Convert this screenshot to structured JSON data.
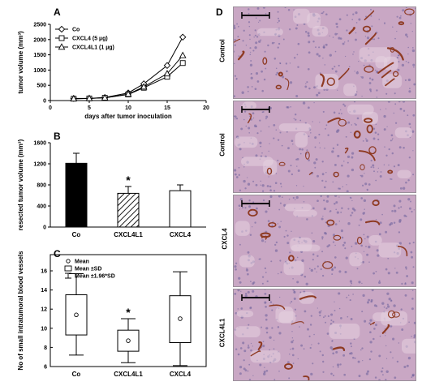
{
  "panels": {
    "A": "A",
    "B": "B",
    "C": "C",
    "D": "D"
  },
  "colors": {
    "ink": "#000000",
    "tissue_bg": "#c9a7c4",
    "tissue_dots": "#6a5f9a",
    "vessel": "#8e3a22"
  },
  "chart_data": [
    {
      "id": "A",
      "type": "line",
      "title": "",
      "xlabel": "days after tumor inoculation",
      "ylabel": "tumor volume (mm³)",
      "xlim": [
        0,
        20
      ],
      "ylim": [
        0,
        2500
      ],
      "xticks": [
        0,
        5,
        10,
        15,
        20
      ],
      "yticks": [
        0,
        500,
        1000,
        1500,
        2000,
        2500
      ],
      "x": [
        3,
        5,
        7,
        10,
        12,
        15,
        17
      ],
      "series": [
        {
          "name": "Co",
          "marker": "diamond",
          "values": [
            70,
            70,
            100,
            250,
            550,
            1150,
            2080
          ]
        },
        {
          "name": "CXCL4 (5 µg)",
          "marker": "square",
          "values": [
            60,
            70,
            90,
            200,
            420,
            780,
            1230
          ]
        },
        {
          "name": "CXCL4L1 (1 µg)",
          "marker": "triangle",
          "values": [
            60,
            70,
            90,
            210,
            450,
            880,
            1480
          ]
        }
      ],
      "legend": "top-left",
      "grid": false
    },
    {
      "id": "B",
      "type": "bar",
      "title": "",
      "xlabel": "",
      "ylabel": "resected tumor volume (mm³)",
      "ylim": [
        0,
        1600
      ],
      "yticks": [
        0,
        400,
        800,
        1200,
        1600
      ],
      "categories": [
        "Co",
        "CXCL4L1",
        "CXCL4"
      ],
      "values": [
        1210,
        640,
        690
      ],
      "errors": [
        190,
        130,
        110
      ],
      "fills": [
        "solid",
        "hatched",
        "open"
      ],
      "annotations": [
        {
          "category": "CXCL4L1",
          "text": "*"
        }
      ]
    },
    {
      "id": "C",
      "type": "box",
      "title": "",
      "xlabel": "",
      "ylabel": "No of small intratumoral blood vessels",
      "ylim": [
        6,
        16
      ],
      "yticks": [
        6,
        8,
        10,
        12,
        14,
        16
      ],
      "categories": [
        "Co",
        "CXCL4L1",
        "CXCL4"
      ],
      "mean": [
        11.4,
        8.7,
        11.0
      ],
      "sd_low": [
        9.3,
        7.6,
        8.5
      ],
      "sd_high": [
        13.5,
        9.8,
        13.4
      ],
      "whisker_low": [
        7.2,
        6.4,
        6.1
      ],
      "whisker_high": [
        15.7,
        11.0,
        15.9
      ],
      "legend": {
        "mean": "Mean",
        "sd": "Mean ±SD",
        "ci": "Mean ±1.96*SD",
        "placement": "top-left"
      },
      "annotations": [
        {
          "category": "CXCL4L1",
          "text": "*"
        }
      ]
    }
  ],
  "micrographs": {
    "rows": [
      {
        "label": "Control"
      },
      {
        "label": "Control"
      },
      {
        "label": "CXCL4"
      },
      {
        "label": "CXCL4L1"
      }
    ]
  }
}
